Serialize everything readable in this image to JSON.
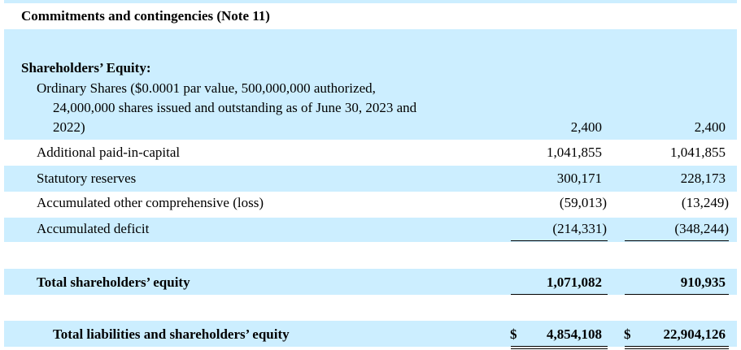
{
  "commitments": {
    "label": "Commitments and contingencies (Note 11)"
  },
  "equity_header": "Shareholders’ Equity:",
  "rows": [
    {
      "label_lines": [
        "Ordinary Shares ($0.0001 par value, 500,000,000 authorized,",
        "24,000,000 shares issued and outstanding as of June 30, 2023 and",
        "2022)"
      ],
      "v2023": "2,400",
      "v2022": "2,400"
    },
    {
      "label": "Additional paid-in-capital",
      "v2023": "1,041,855",
      "v2022": "1,041,855"
    },
    {
      "label": "Statutory reserves",
      "v2023": "300,171",
      "v2022": "228,173"
    },
    {
      "label": "Accumulated other comprehensive (loss)",
      "v2023": "(59,013)",
      "v2022": "(13,249)"
    },
    {
      "label": "Accumulated deficit",
      "v2023": "(214,331)",
      "v2022": "(348,244)"
    }
  ],
  "total_equity": {
    "label": "Total shareholders’ equity",
    "v2023": "1,071,082",
    "v2022": "910,935"
  },
  "total_liabilities_equity": {
    "label": "Total liabilities and shareholders’ equity",
    "currency": "$",
    "v2023": "4,854,108",
    "v2022": "22,904,126"
  }
}
